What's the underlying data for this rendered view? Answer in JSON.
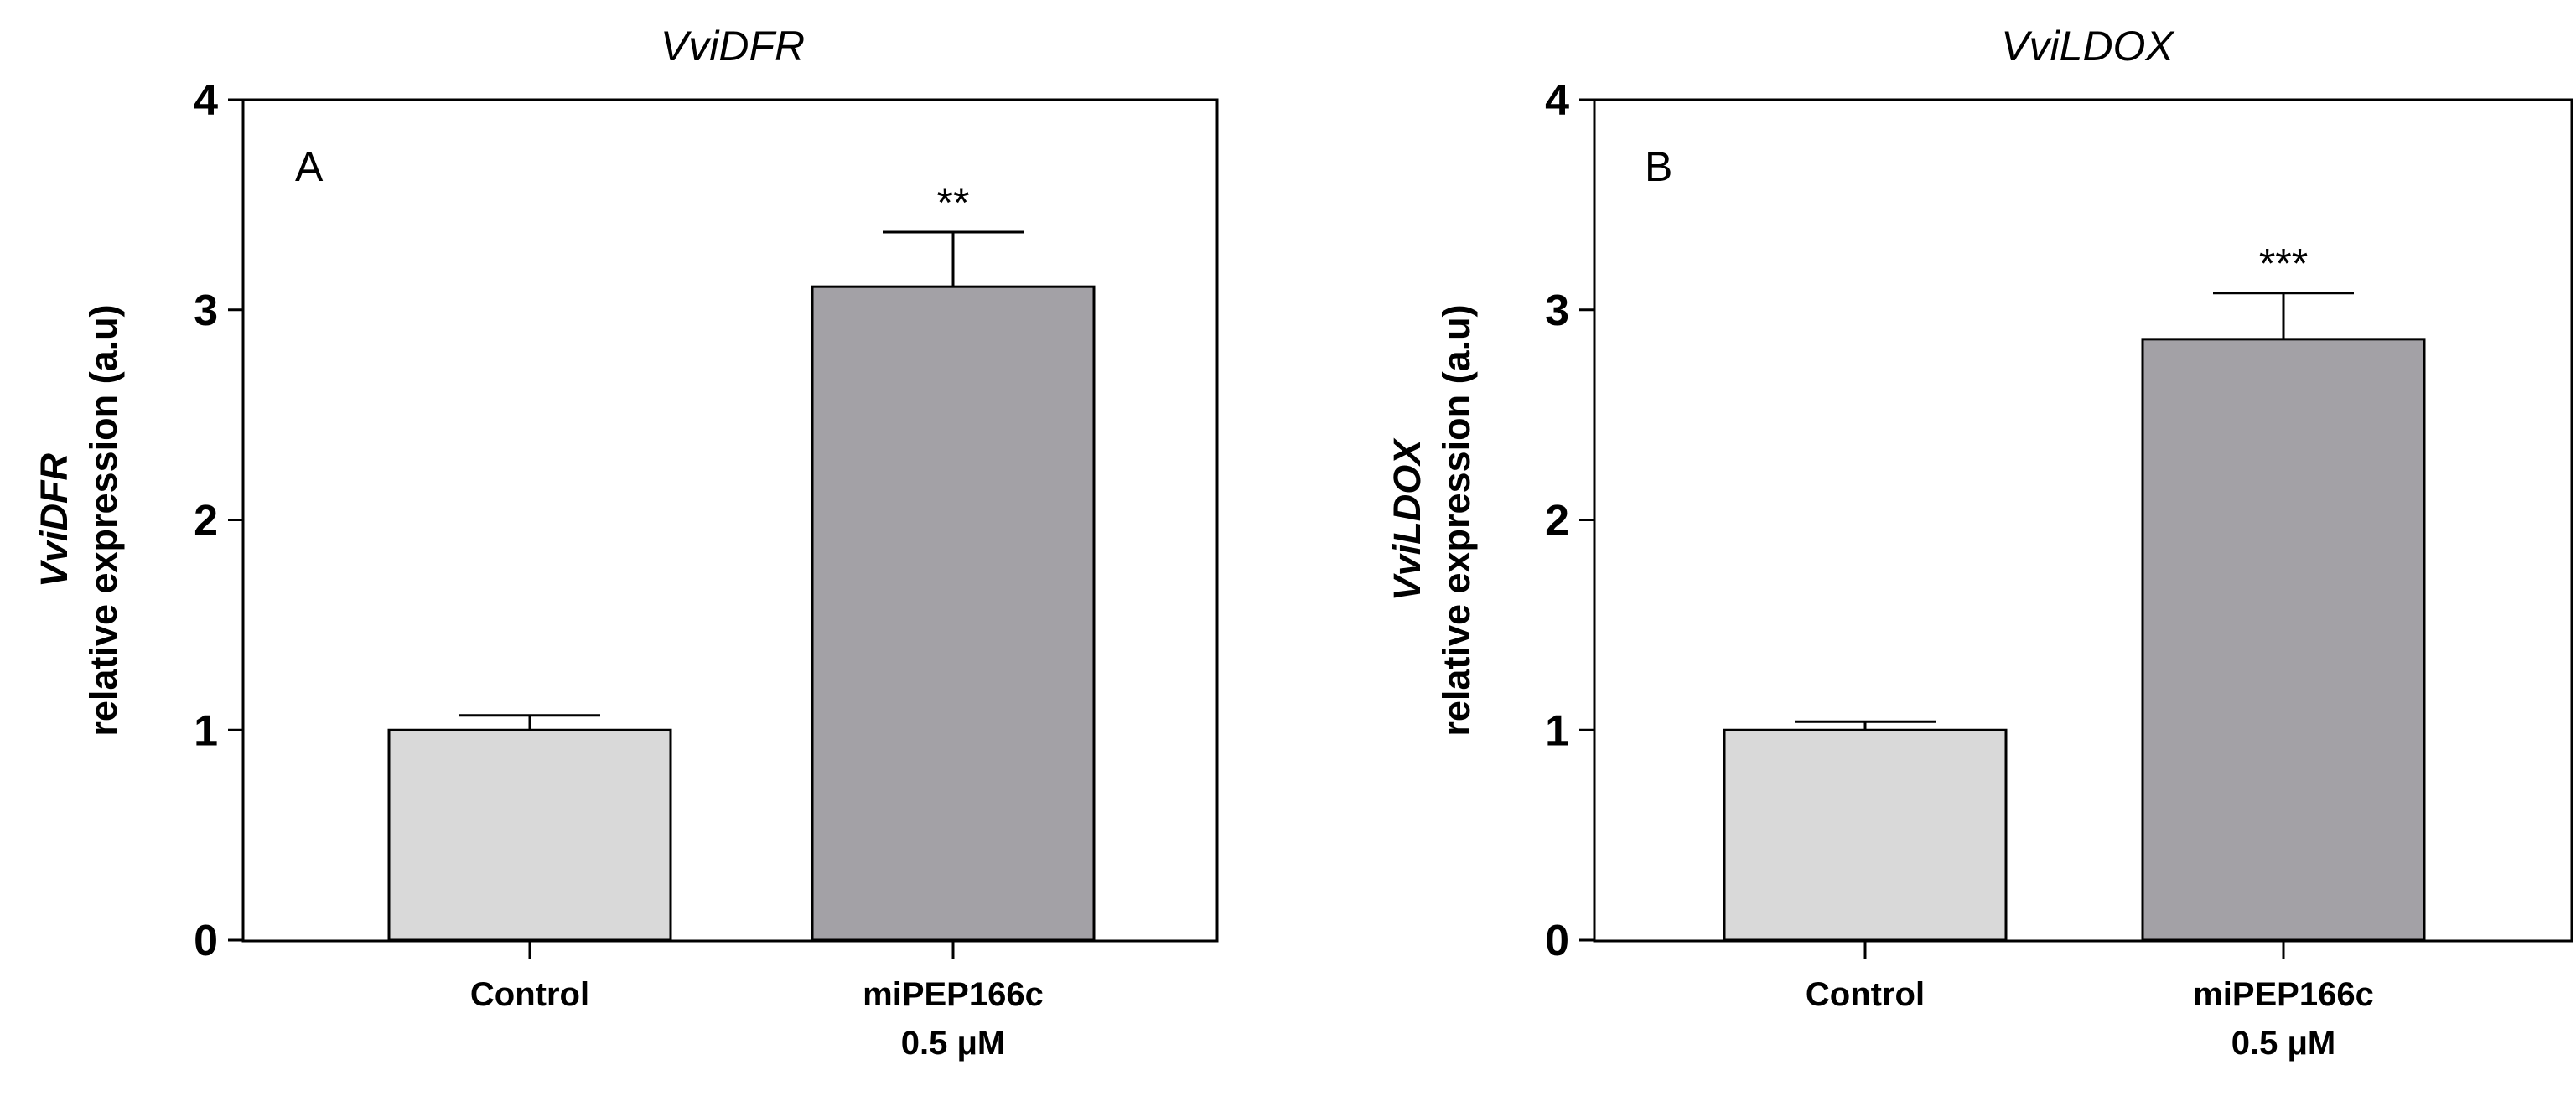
{
  "chart_data": [
    {
      "type": "bar",
      "title": "VviDFR",
      "panel_label": "A",
      "ylabel_gene": "VviDFR",
      "ylabel": "relative expression (a.u)",
      "categories": [
        [
          "Control"
        ],
        [
          "miPEP166c",
          "0.5 μM"
        ]
      ],
      "values": [
        1.0,
        3.11
      ],
      "error": [
        0.07,
        0.26
      ],
      "significance": [
        "",
        "**"
      ],
      "colors": [
        "#d9d9d9",
        "#a3a1a6"
      ],
      "ylim": [
        0,
        4
      ],
      "yticks": [
        "0",
        "1",
        "2",
        "3",
        "4"
      ],
      "grid": false
    },
    {
      "type": "bar",
      "title": "VviLDOX",
      "panel_label": "B",
      "ylabel_gene": "VviLDOX",
      "ylabel": "relative expression (a.u)",
      "categories": [
        [
          "Control"
        ],
        [
          "miPEP166c",
          "0.5 μM"
        ]
      ],
      "values": [
        1.0,
        2.86
      ],
      "error": [
        0.04,
        0.22
      ],
      "significance": [
        "",
        "***"
      ],
      "colors": [
        "#d9d9d9",
        "#a3a1a6"
      ],
      "ylim": [
        0,
        4
      ],
      "yticks": [
        "0",
        "1",
        "2",
        "3",
        "4"
      ],
      "grid": false
    }
  ]
}
